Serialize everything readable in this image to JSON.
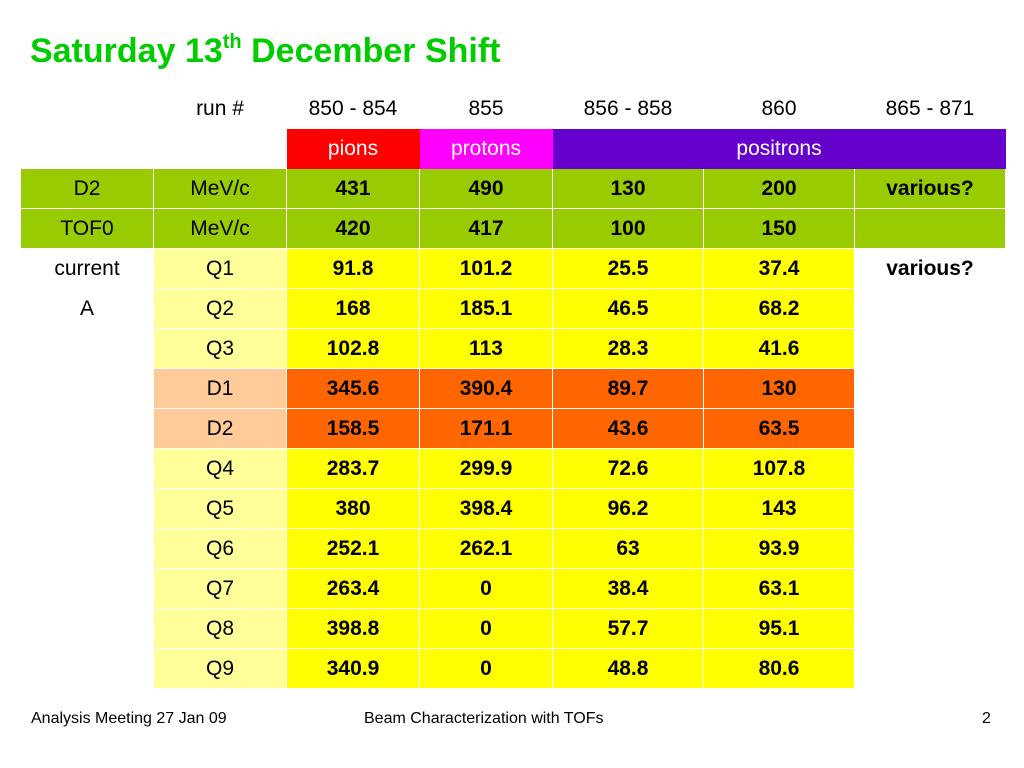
{
  "title": {
    "main": "Saturday 13",
    "sup": "th",
    "rest": " December Shift"
  },
  "header": {
    "label": "run #",
    "runs": [
      "850 - 854",
      "855",
      "856 - 858",
      "860",
      "865 - 871"
    ]
  },
  "particles": [
    "pions",
    "protons",
    "",
    "positrons",
    ""
  ],
  "colors": {
    "title": "#00cc00",
    "pions": "#ff0000",
    "protons": "#ff00ff",
    "positrons": "#6600cc",
    "green": "#99cc00",
    "yellow": "#ffff00",
    "orange": "#ff6600"
  },
  "momentum_rows": [
    {
      "label": "D2",
      "unit": "MeV/c",
      "values": [
        "431",
        "490",
        "130",
        "200",
        "various?"
      ]
    },
    {
      "label": "TOF0",
      "unit": "MeV/c",
      "values": [
        "420",
        "417",
        "100",
        "150",
        ""
      ]
    }
  ],
  "current": {
    "label1": "current",
    "label2": "A",
    "last_col_first": "various?",
    "rows": [
      {
        "magnet": "Q1",
        "values": [
          "91.8",
          "101.2",
          "25.5",
          "37.4"
        ]
      },
      {
        "magnet": "Q2",
        "values": [
          "168",
          "185.1",
          "46.5",
          "68.2"
        ]
      },
      {
        "magnet": "Q3",
        "values": [
          "102.8",
          "113",
          "28.3",
          "41.6"
        ]
      },
      {
        "magnet": "D1",
        "values": [
          "345.6",
          "390.4",
          "89.7",
          "130"
        ]
      },
      {
        "magnet": "D2",
        "values": [
          "158.5",
          "171.1",
          "43.6",
          "63.5"
        ]
      },
      {
        "magnet": "Q4",
        "values": [
          "283.7",
          "299.9",
          "72.6",
          "107.8"
        ]
      },
      {
        "magnet": "Q5",
        "values": [
          "380",
          "398.4",
          "96.2",
          "143"
        ]
      },
      {
        "magnet": "Q6",
        "values": [
          "252.1",
          "262.1",
          "63",
          "93.9"
        ]
      },
      {
        "magnet": "Q7",
        "values": [
          "263.4",
          "0",
          "38.4",
          "63.1"
        ]
      },
      {
        "magnet": "Q8",
        "values": [
          "398.8",
          "0",
          "57.7",
          "95.1"
        ]
      },
      {
        "magnet": "Q9",
        "values": [
          "340.9",
          "0",
          "48.8",
          "80.6"
        ]
      }
    ]
  },
  "footer": {
    "left": "Analysis Meeting 27 Jan 09",
    "center": "Beam Characterization with TOFs",
    "page": "2"
  }
}
